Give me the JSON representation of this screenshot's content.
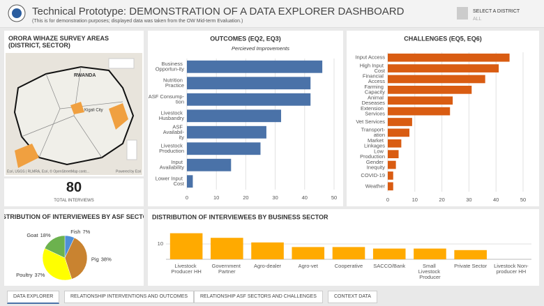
{
  "header": {
    "title": "Technical Prototype: DEMONSTRATION OF A DATA EXPLORER DASHBOARD",
    "subtitle": "(This is for demonstration purposes; displayed data was taken from the OW Mid-term Evaluation.)",
    "selector_label": "SELECT A DISTRICT",
    "selector_value": "ALL"
  },
  "map": {
    "title": "ORORA WIHAZE SURVEY AREAS (DISTRICT, SECTOR)",
    "country_label": "RWANDA",
    "city_label": "Kigali City",
    "attribution": "Esri, USGS | RLMRA, Esri, © OpenStreetMap contr...",
    "powered": "Powered by Esri"
  },
  "kpi": {
    "value": 80,
    "label": "TOTAL INTERVIEWS"
  },
  "chart_data": [
    {
      "type": "hbar",
      "title": "OUTCOMES (EQ2, EQ3)",
      "subtitle": "Percieved Improvements",
      "color": "#4a72a8",
      "categories": [
        "Business Opportun-ity",
        "Nutrition Practice",
        "ASF Consump-tion",
        "Livestock Husbandry",
        "ASF Availabil-ity",
        "Livestock Production",
        "Input Availability",
        "Lower Input Cost"
      ],
      "values": [
        46,
        42,
        42,
        32,
        27,
        25,
        15,
        2
      ],
      "xlim": [
        0,
        50
      ],
      "xticks": [
        0,
        10,
        20,
        30,
        40,
        50
      ],
      "grid": true
    },
    {
      "type": "hbar",
      "title": "CHALLENGES (EQ5, EQ6)",
      "color": "#d95c12",
      "categories": [
        "Input Access",
        "High Input Cost",
        "Financial Access",
        "Farming Capacity",
        "Animal Deseases",
        "Extension Services",
        "Vet Services",
        "Transport-ation",
        "Market Linkages",
        "Low Production",
        "Gender Inequity",
        "COVID-19",
        "Weather"
      ],
      "values": [
        45,
        41,
        36,
        31,
        24,
        23,
        9,
        8,
        5,
        4,
        3,
        2,
        2
      ],
      "xlim": [
        0,
        50
      ],
      "xticks": [
        0,
        10,
        20,
        30,
        40,
        50
      ],
      "grid": true
    },
    {
      "type": "pie",
      "title": "DISTRIBUTION OF INTERVIEWEES BY ASF SECTOR",
      "categories": [
        "Fish",
        "Pig",
        "Poultry",
        "Goat"
      ],
      "values": [
        7,
        38,
        37,
        18
      ],
      "value_labels": [
        "7%",
        "38%",
        "37%",
        "18%"
      ],
      "colors": [
        "#4f8fd8",
        "#c98330",
        "#ffff00",
        "#6cb24e"
      ]
    },
    {
      "type": "bar",
      "title": "DISTRIBUTION OF INTERVIEWEES BY BUSINESS SECTOR",
      "color": "#ffaa00",
      "categories": [
        "Livestock Producer HH",
        "Government Partner",
        "Agro-dealer",
        "Agro-vet",
        "Cooperative",
        "SACCO/Bank",
        "Small Livestock Producer",
        "Private Sector",
        "Livestock Non-producer HH"
      ],
      "values": [
        17,
        14,
        11,
        8,
        8,
        7,
        7,
        6,
        0
      ],
      "ylim": [
        0,
        20
      ],
      "yticks": [
        10
      ],
      "grid": true
    }
  ],
  "tabs": [
    "DATA EXPLORER",
    "RELATIONSHIP INTERVENTIONS AND OUTCOMES",
    "RELATIONSHIP ASF SECTORS AND CHALLENGES",
    "CONTEXT DATA"
  ]
}
